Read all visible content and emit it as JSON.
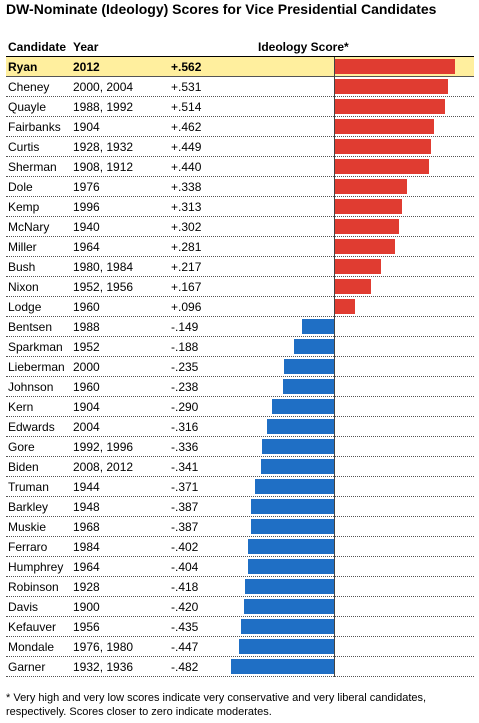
{
  "title": "DW-Nominate (Ideology) Scores for Vice Presidential Candidates",
  "headers": {
    "candidate": "Candidate",
    "year": "Year",
    "score": "Ideology Score*"
  },
  "footnote": "* Very high and very low scores indicate very conservative and very liberal candidates, respectively. Scores closer to zero indicate moderates.",
  "colors": {
    "positive": "#e03c31",
    "negative": "#1f6fc5",
    "highlight": "#ffef9e"
  },
  "chart_data": {
    "type": "bar",
    "orientation": "horizontal",
    "title": "DW-Nominate (Ideology) Scores for Vice Presidential Candidates",
    "value_label": "Ideology Score*",
    "highlighted": "Ryan",
    "rows": [
      {
        "name": "Ryan",
        "year": "2012",
        "label": "+.562",
        "value": 0.562
      },
      {
        "name": "Cheney",
        "year": "2000, 2004",
        "label": "+.531",
        "value": 0.531
      },
      {
        "name": "Quayle",
        "year": "1988, 1992",
        "label": "+.514",
        "value": 0.514
      },
      {
        "name": "Fairbanks",
        "year": "1904",
        "label": "+.462",
        "value": 0.462
      },
      {
        "name": "Curtis",
        "year": "1928, 1932",
        "label": "+.449",
        "value": 0.449
      },
      {
        "name": "Sherman",
        "year": "1908, 1912",
        "label": "+.440",
        "value": 0.44
      },
      {
        "name": "Dole",
        "year": "1976",
        "label": "+.338",
        "value": 0.338
      },
      {
        "name": "Kemp",
        "year": "1996",
        "label": "+.313",
        "value": 0.313
      },
      {
        "name": "McNary",
        "year": "1940",
        "label": "+.302",
        "value": 0.302
      },
      {
        "name": "Miller",
        "year": "1964",
        "label": "+.281",
        "value": 0.281
      },
      {
        "name": "Bush",
        "year": "1980, 1984",
        "label": "+.217",
        "value": 0.217
      },
      {
        "name": "Nixon",
        "year": "1952, 1956",
        "label": "+.167",
        "value": 0.167
      },
      {
        "name": "Lodge",
        "year": "1960",
        "label": "+.096",
        "value": 0.096
      },
      {
        "name": "Bentsen",
        "year": "1988",
        "label": "-.149",
        "value": -0.149
      },
      {
        "name": "Sparkman",
        "year": "1952",
        "label": "-.188",
        "value": -0.188
      },
      {
        "name": "Lieberman",
        "year": "2000",
        "label": "-.235",
        "value": -0.235
      },
      {
        "name": "Johnson",
        "year": "1960",
        "label": "-.238",
        "value": -0.238
      },
      {
        "name": "Kern",
        "year": "1904",
        "label": "-.290",
        "value": -0.29
      },
      {
        "name": "Edwards",
        "year": "2004",
        "label": "-.316",
        "value": -0.316
      },
      {
        "name": "Gore",
        "year": "1992, 1996",
        "label": "-.336",
        "value": -0.336
      },
      {
        "name": "Biden",
        "year": "2008, 2012",
        "label": "-.341",
        "value": -0.341
      },
      {
        "name": "Truman",
        "year": "1944",
        "label": "-.371",
        "value": -0.371
      },
      {
        "name": "Barkley",
        "year": "1948",
        "label": "-.387",
        "value": -0.387
      },
      {
        "name": "Muskie",
        "year": "1968",
        "label": "-.387",
        "value": -0.387
      },
      {
        "name": "Ferraro",
        "year": "1984",
        "label": "-.402",
        "value": -0.402
      },
      {
        "name": "Humphrey",
        "year": "1964",
        "label": "-.404",
        "value": -0.404
      },
      {
        "name": "Robinson",
        "year": "1928",
        "label": "-.418",
        "value": -0.418
      },
      {
        "name": "Davis",
        "year": "1900",
        "label": "-.420",
        "value": -0.42
      },
      {
        "name": "Kefauver",
        "year": "1956",
        "label": "-.435",
        "value": -0.435
      },
      {
        "name": "Mondale",
        "year": "1976, 1980",
        "label": "-.447",
        "value": -0.447
      },
      {
        "name": "Garner",
        "year": "1932, 1936",
        "label": "-.482",
        "value": -0.482
      }
    ]
  }
}
